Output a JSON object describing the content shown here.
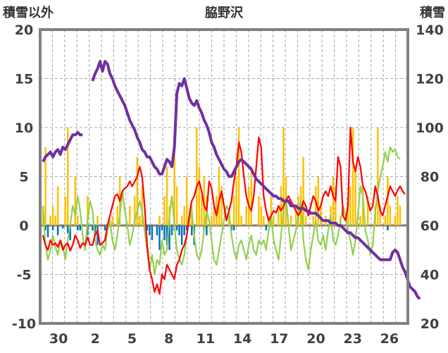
{
  "chart_data": {
    "type": "line",
    "title": "脇野沢",
    "left_axis_label": "積雪以外",
    "right_axis_label": "積雪",
    "left_ylim": [
      -10,
      20
    ],
    "left_ticks": [
      "20",
      "15",
      "10",
      "5",
      "0",
      "-5",
      "-10"
    ],
    "right_ylim": [
      20,
      140
    ],
    "right_ticks": [
      "140",
      "120",
      "100",
      "80",
      "60",
      "40",
      "20"
    ],
    "x_ticks": [
      "30",
      "2",
      "5",
      "8",
      "11",
      "14",
      "17",
      "20",
      "23",
      "26"
    ],
    "grid": true,
    "colors": {
      "temp_max": "#ff0000",
      "temp_min": "#92d050",
      "snow_depth": "#7030a0",
      "snowfall": "#ffc000",
      "precip": "#0070c0",
      "zero_line": "#808080",
      "frame": "#808080"
    },
    "series": [
      {
        "key": "temp_max",
        "axis": "left",
        "values": [
          -1.0,
          -2.0,
          -2.5,
          -1.5,
          -2.0,
          -1.8,
          -2.2,
          -1.5,
          -2.5,
          -2.0,
          -1.8,
          -2.6,
          -2.0,
          -1.0,
          -1.5,
          -2.3,
          -1.8,
          -2.0,
          -1.2,
          -2.0,
          -2.0,
          -1.0,
          -0.5,
          -2.0,
          -1.8,
          -1.5,
          0.0,
          1.0,
          2.0,
          3.0,
          3.2,
          2.5,
          3.5,
          3.8,
          4.0,
          4.5,
          4.0,
          4.5,
          5.0,
          6.0,
          5.0,
          2.0,
          -2.0,
          -4.5,
          -5.5,
          -6.8,
          -6.0,
          -7.0,
          -5.0,
          -5.5,
          -4.0,
          -4.5,
          -5.0,
          -5.5,
          -4.0,
          -3.5,
          -2.5,
          -2.0,
          -1.0,
          1.0,
          2.5,
          3.0,
          4.0,
          4.5,
          3.5,
          2.0,
          1.5,
          4.5,
          3.8,
          2.0,
          1.0,
          2.5,
          3.5,
          2.0,
          0.5,
          1.5,
          2.5,
          4.5,
          6.0,
          8.5,
          7.5,
          5.0,
          3.0,
          2.0,
          1.5,
          3.0,
          6.0,
          9.0,
          8.0,
          3.0,
          1.5,
          0.5,
          1.0,
          1.5,
          1.3,
          2.0,
          1.5,
          2.0,
          2.5,
          3.0,
          2.5,
          2.0,
          1.5,
          1.0,
          1.5,
          2.5,
          2.0,
          1.0,
          2.0,
          3.0,
          2.5,
          1.5,
          2.0,
          3.0,
          3.5,
          3.0,
          4.0,
          3.0,
          2.5,
          7.0,
          6.0,
          1.0,
          0.5,
          2.0,
          10.0,
          6.5,
          5.5,
          7.0,
          6.0,
          4.0,
          3.5,
          2.5,
          1.5,
          2.0,
          4.0,
          3.0,
          1.5,
          1.0,
          2.0,
          3.0,
          4.0,
          3.5,
          3.0,
          3.6,
          4.0,
          3.5,
          3.2
        ]
      },
      {
        "key": "temp_min",
        "axis": "left",
        "values": [
          2.0,
          -2.0,
          -3.5,
          -2.5,
          -1.0,
          -2.2,
          -3.0,
          -1.5,
          -2.0,
          -3.5,
          -1.5,
          0.0,
          2.0,
          1.0,
          3.0,
          1.5,
          -1.0,
          -2.5,
          0.5,
          2.5,
          1.5,
          -1.5,
          -2.5,
          -3.0,
          -2.0,
          -2.5,
          -0.5,
          0.5,
          -1.5,
          -2.5,
          -1.0,
          1.0,
          3.5,
          1.5,
          0.0,
          -2.0,
          -1.0,
          0.5,
          1.5,
          2.5,
          1.5,
          -0.5,
          -2.5,
          -4.5,
          -3.0,
          -5.0,
          -3.5,
          -4.0,
          -1.5,
          -3.0,
          -2.5,
          1.0,
          3.0,
          0.0,
          -2.5,
          -3.5,
          -4.0,
          -3.0,
          -1.0,
          0.5,
          1.5,
          -1.0,
          -3.0,
          -3.5,
          -2.5,
          -0.5,
          1.5,
          0.5,
          -1.5,
          -3.5,
          -4.0,
          -2.5,
          -1.0,
          0.5,
          2.0,
          1.5,
          -1.0,
          -2.5,
          -3.5,
          -2.0,
          -1.5,
          -2.5,
          -3.5,
          -2.0,
          -1.0,
          -2.5,
          -3.0,
          -1.5,
          -2.0,
          -1.5,
          -2.5,
          -0.5,
          1.0,
          -1.5,
          -2.5,
          -3.5,
          -1.0,
          1.5,
          3.0,
          0.0,
          -2.5,
          -1.5,
          -0.5,
          1.0,
          2.5,
          -1.5,
          -3.5,
          -4.5,
          -2.5,
          -1.0,
          0.5,
          -1.5,
          -2.0,
          -1.0,
          -2.5,
          -0.5,
          1.0,
          -1.5,
          -2.0,
          -1.0,
          0.5,
          2.0,
          1.0,
          -0.5,
          -1.5,
          -3.0,
          -1.5,
          1.0,
          4.0,
          3.0,
          -0.5,
          -1.5,
          -3.0,
          -2.0,
          1.5,
          3.5,
          5.0,
          6.0,
          7.5,
          6.5,
          8.0,
          7.5,
          7.8,
          7.0,
          6.8
        ]
      },
      {
        "key": "snow_depth",
        "axis": "right",
        "values": [
          86,
          88,
          89,
          90,
          88,
          90,
          91,
          89,
          92,
          91,
          93,
          95,
          97,
          97,
          98,
          97,
          97,
          null,
          null,
          null,
          119,
          122,
          124,
          127,
          123,
          127,
          126,
          122,
          120,
          117,
          115,
          113,
          111,
          109,
          106,
          103,
          101,
          99,
          96,
          94,
          91,
          90,
          88,
          88,
          86,
          84,
          83,
          81,
          81,
          84,
          87,
          86,
          84,
          92,
          114,
          118,
          117,
          120,
          116,
          112,
          110,
          109,
          111,
          108,
          106,
          103,
          101,
          98,
          94,
          92,
          89,
          87,
          85,
          83,
          82,
          80,
          80,
          82,
          84,
          86,
          87,
          86,
          85,
          84,
          83,
          81,
          79,
          78,
          77,
          76,
          75,
          74,
          73,
          72,
          72,
          71,
          71,
          70,
          70,
          70,
          68,
          68,
          68,
          67,
          67,
          67,
          66,
          66,
          65,
          65,
          65,
          64,
          63,
          62,
          62,
          62,
          61,
          61,
          61,
          60,
          60,
          59,
          58,
          57,
          57,
          56,
          55,
          55,
          54,
          53,
          52,
          51,
          50,
          49,
          48,
          47,
          46,
          46,
          46,
          46,
          46,
          49,
          50,
          49,
          46,
          43,
          41,
          38,
          35,
          34,
          33,
          31,
          30
        ]
      },
      {
        "key": "snowfall",
        "axis": "left",
        "values": [
          2.0,
          8.0,
          0.0,
          1.0,
          2.0,
          1.0,
          4.0,
          0.0,
          0.0,
          3.0,
          10.0,
          0.0,
          0.0,
          5.0,
          1.0,
          0.0,
          0.0,
          0.0,
          3.0,
          0.0,
          0.0,
          0.0,
          1.0,
          0.0,
          0.0,
          0.0,
          0.0,
          0.0,
          1.0,
          0.0,
          2.0,
          5.0,
          0.0,
          0.0,
          0.0,
          2.0,
          0.0,
          3.0,
          7.0,
          1.0,
          4.0,
          0.0,
          0.0,
          0.0,
          0.0,
          0.0,
          0.0,
          1.0,
          0.0,
          3.0,
          6.0,
          2.0,
          0.0,
          9.0,
          4.0,
          0.0,
          1.0,
          2.0,
          5.0,
          1.0,
          2.0,
          0.0,
          10.0,
          6.0,
          3.0,
          5.0,
          3.0,
          0.0,
          1.0,
          2.0,
          3.0,
          6.0,
          4.0,
          0.0,
          0.0,
          1.0,
          0.0,
          3.0,
          5.0,
          10.0,
          1.0,
          0.0,
          2.0,
          4.0,
          6.0,
          0.0,
          0.0,
          3.0,
          2.0,
          1.0,
          0.0,
          1.0,
          3.0,
          1.0,
          0.0,
          2.0,
          4.0,
          10.0,
          5.0,
          0.0,
          1.0,
          0.0,
          2.0,
          3.0,
          4.0,
          7.0,
          1.0,
          0.0,
          0.0,
          1.0,
          4.0,
          5.0,
          2.0,
          0.0,
          1.0,
          0.0,
          2.0,
          5.0,
          4.0,
          0.0,
          1.0,
          0.0,
          0.0,
          3.0,
          4.0,
          10.0,
          6.0,
          0.0,
          1.0,
          4.0,
          0.0,
          3.0,
          0.0,
          0.0,
          2.0,
          10.0,
          2.0,
          0.0,
          1.0,
          5.0,
          2.0,
          0.0,
          1.0,
          3.0,
          2.0,
          0.0,
          0.0
        ]
      },
      {
        "key": "precip",
        "axis": "left",
        "values": [
          0.0,
          -0.5,
          -1.2,
          0.0,
          -0.5,
          0.0,
          -1.0,
          0.0,
          -0.3,
          0.0,
          -0.8,
          -1.5,
          0.0,
          0.0,
          -0.5,
          -0.5,
          0.0,
          0.0,
          -1.0,
          0.0,
          -0.5,
          -1.0,
          -2.0,
          0.0,
          0.0,
          -0.5,
          -0.5,
          0.0,
          0.0,
          0.0,
          0.0,
          0.0,
          0.0,
          0.0,
          0.0,
          0.0,
          0.0,
          0.0,
          0.0,
          0.0,
          0.0,
          0.0,
          -0.5,
          -1.0,
          -1.5,
          0.0,
          -1.0,
          -2.5,
          -0.5,
          -1.5,
          -2.0,
          -2.5,
          -1.0,
          -0.5,
          -0.5,
          -1.0,
          -2.0,
          -1.0,
          -0.5,
          0.0,
          -1.0,
          -2.0,
          0.0,
          0.0,
          0.0,
          -0.5,
          -1.0,
          0.0,
          0.0,
          0.0,
          0.0,
          0.0,
          0.0,
          0.0,
          0.0,
          0.0,
          -0.5,
          -0.5,
          0.0,
          0.0,
          0.0,
          0.0,
          0.0,
          0.0,
          0.0,
          0.0,
          0.0,
          0.0,
          0.0,
          0.0,
          -0.5,
          0.0,
          0.0,
          0.0,
          0.0,
          0.0,
          0.0,
          0.0,
          0.0,
          0.0,
          0.0,
          0.0,
          0.0,
          0.0,
          0.0,
          0.0,
          0.0,
          0.0,
          0.0,
          0.0,
          0.0,
          0.0,
          0.0,
          0.0,
          0.0,
          0.0,
          0.0,
          0.0,
          0.0,
          0.0,
          0.0,
          0.0,
          0.0,
          0.0,
          0.0,
          0.0,
          0.0,
          0.0,
          0.0,
          0.0,
          0.0,
          0.0,
          0.0,
          0.0,
          0.0,
          0.0,
          0.0,
          0.0,
          0.0,
          -0.5,
          0.0,
          0.0,
          0.0,
          0.0,
          0.0,
          0.0,
          0.0,
          0.0
        ]
      }
    ]
  }
}
